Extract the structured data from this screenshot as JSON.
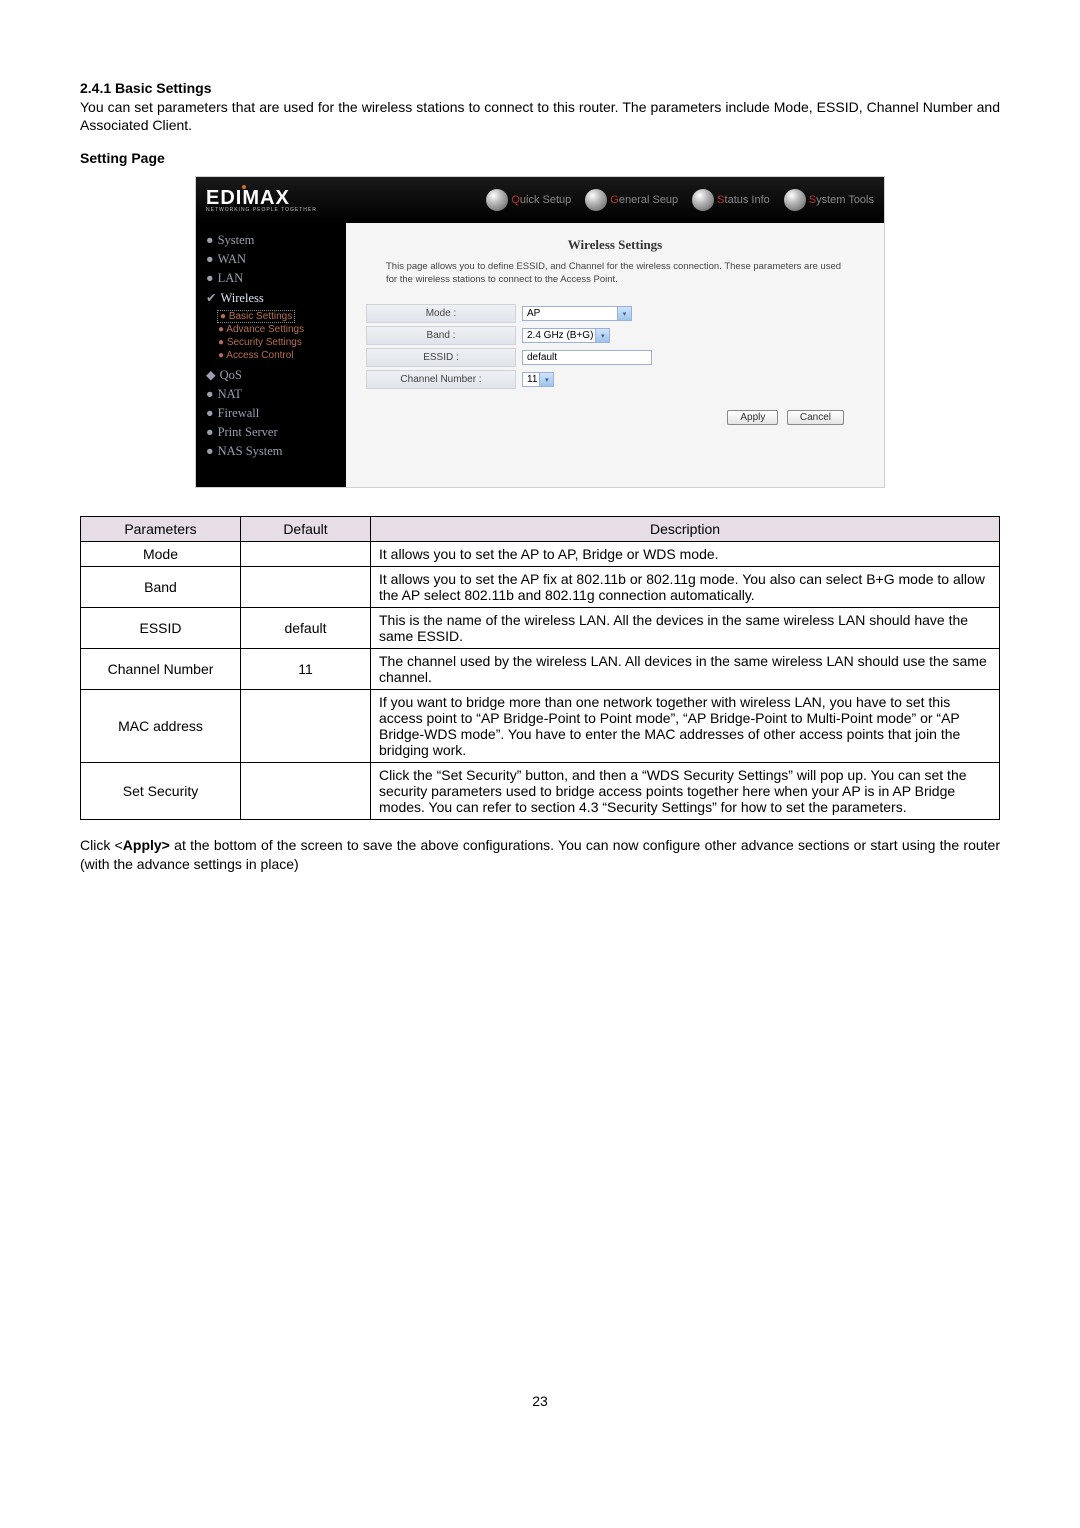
{
  "heading": "2.4.1 Basic Settings",
  "intro": "You can set parameters that are used for the wireless stations to connect to this router. The parameters include Mode, ESSID, Channel Number and Associated Client.",
  "subhead": "Setting Page",
  "screenshot": {
    "logo": "EDIMAX",
    "logo_tag": "NETWORKING PEOPLE TOGETHER",
    "tabs": [
      "Quick Setup",
      "General Seup",
      "Status Info",
      "System Tools"
    ],
    "nav_top": [
      "System",
      "WAN",
      "LAN"
    ],
    "nav_wireless": "Wireless",
    "nav_wireless_sub": [
      "Basic Settings",
      "Advance Settings",
      "Security Settings",
      "Access Control"
    ],
    "nav_bottom": [
      "QoS",
      "NAT",
      "Firewall",
      "Print Server",
      "NAS System"
    ],
    "panel_title": "Wireless Settings",
    "panel_desc": "This page allows you to define ESSID, and Channel for the wireless connection. These parameters are used for the wireless stations to connect to the Access Point.",
    "rows": {
      "mode_label": "Mode :",
      "mode_value": "AP",
      "band_label": "Band :",
      "band_value": "2.4 GHz (B+G)",
      "essid_label": "ESSID :",
      "essid_value": "default",
      "chan_label": "Channel Number :",
      "chan_value": "11"
    },
    "btn_apply": "Apply",
    "btn_cancel": "Cancel"
  },
  "table": {
    "headers": [
      "Parameters",
      "Default",
      "Description"
    ],
    "rows": [
      {
        "p": "Mode",
        "d": "",
        "desc": "It allows you to set the AP to AP, Bridge or WDS mode."
      },
      {
        "p": "Band",
        "d": "",
        "desc": "It allows you to set the AP fix at 802.11b or 802.11g mode. You also can select B+G mode to allow the AP select 802.11b and 802.11g connection automatically."
      },
      {
        "p": "ESSID",
        "d": "default",
        "desc": "This is the name of the wireless LAN. All the devices in the same wireless LAN should have the same ESSID."
      },
      {
        "p": "Channel Number",
        "d": "11",
        "desc": "The channel used by the wireless LAN. All devices in the same wireless LAN should use the same channel."
      },
      {
        "p": "MAC address",
        "d": "",
        "desc": "If you want to bridge more than one network together with wireless LAN, you have to set this access point to “AP Bridge-Point to Point mode”, “AP Bridge-Point to Multi-Point mode” or “AP Bridge-WDS mode”. You have to enter the MAC addresses of other access points that join the bridging work."
      },
      {
        "p": "Set Security",
        "d": "",
        "desc": "Click the “Set Security” button, and then a “WDS Security Settings” will pop up. You can set the security parameters used to bridge access points together here when your AP is in AP Bridge modes. You can refer to section 4.3 “Security Settings” for how to set the parameters."
      }
    ]
  },
  "footnote_pre": "Click <",
  "footnote_bold": "Apply>",
  "footnote_post": " at the bottom of the screen to save the above configurations. You can now configure other advance sections or start using the router (with the advance settings in place)",
  "page_number": "23"
}
